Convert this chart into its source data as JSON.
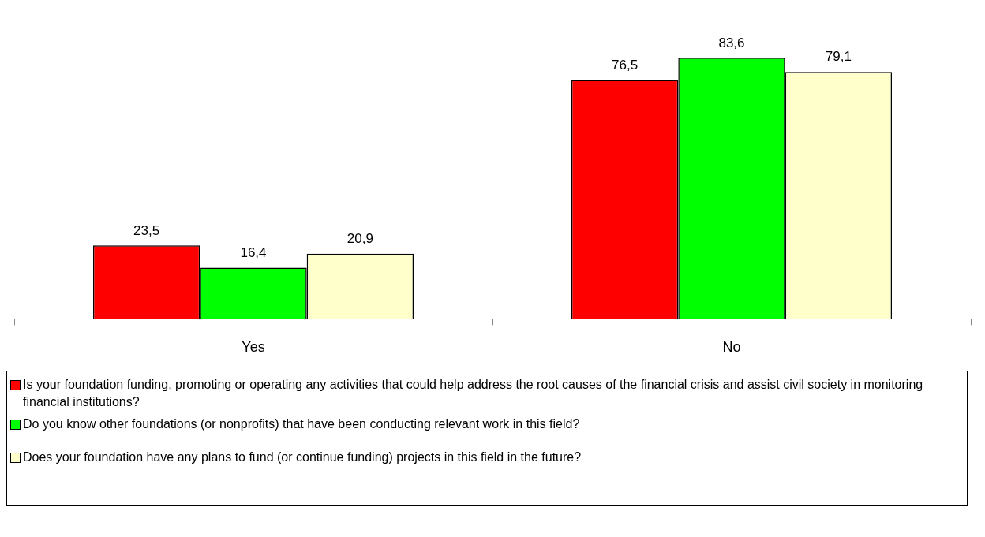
{
  "chart_data": {
    "type": "bar",
    "categories": [
      "Yes",
      "No"
    ],
    "series": [
      {
        "name": "Is your foundation funding, promoting or operating any activities that could help address the root causes of the financial crisis and assist civil society in monitoring financial institutions?",
        "color": "#ff0000",
        "values": [
          23.5,
          76.5
        ],
        "value_labels": [
          "23,5",
          "76,5"
        ]
      },
      {
        "name": "Do you know other foundations (or nonprofits) that have been conducting relevant work in this field?",
        "color": "#00ff00",
        "values": [
          16.4,
          83.6
        ],
        "value_labels": [
          "16,4",
          "83,6"
        ]
      },
      {
        "name": "Does your foundation have any plans to fund (or continue funding) projects in this field in the future?",
        "color": "#ffffcc",
        "values": [
          20.9,
          79.1
        ],
        "value_labels": [
          "20,9",
          "79,1"
        ]
      }
    ],
    "legend": "bottom",
    "grid": false
  }
}
